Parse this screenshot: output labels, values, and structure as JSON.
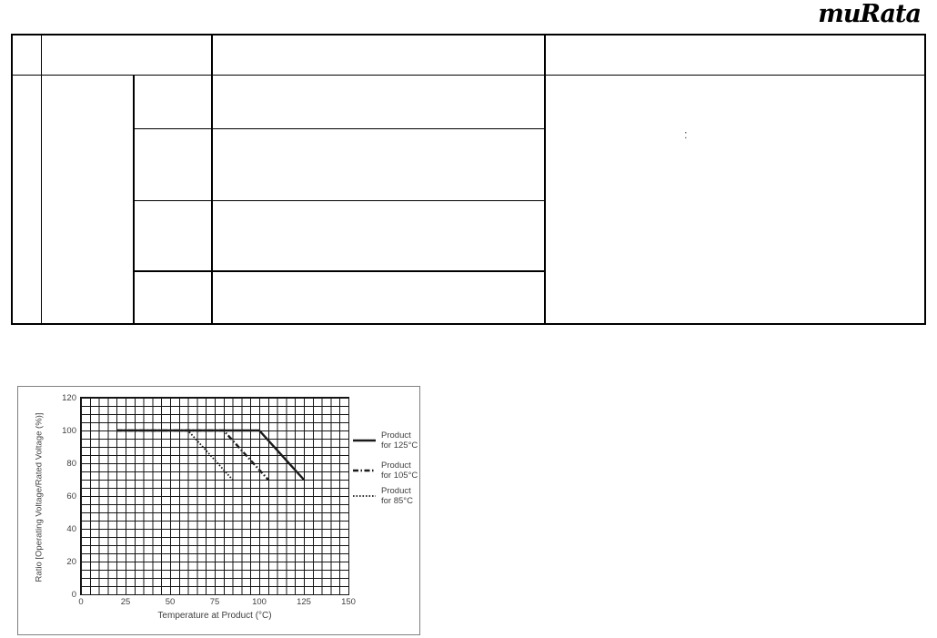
{
  "page": {
    "background": "#ffffff"
  },
  "logo": {
    "text": "muRata"
  },
  "table": {
    "note_mark": ":"
  },
  "chart_data": {
    "type": "line",
    "title": "",
    "xlabel": "Temperature at Product (°C)",
    "ylabel": "Ratio [Operating Voltage/Rated Voltage (%)]",
    "xlim": [
      0,
      150
    ],
    "ylim": [
      0,
      120
    ],
    "x_ticks": [
      0,
      25,
      50,
      75,
      100,
      125,
      150
    ],
    "y_ticks": [
      0,
      20,
      40,
      60,
      80,
      100,
      120
    ],
    "minor_grid_step": 5,
    "grid": "on",
    "legend_position": "right-outside-plot",
    "colors": {
      "line": "#1a1a1a",
      "grid": "#141414",
      "text": "#3f3f3f",
      "frame": "#808080"
    },
    "series": [
      {
        "name": "Product for 125°C",
        "label_line1": "Product",
        "label_line2": "for 125°C",
        "style": "solid",
        "points": [
          [
            20,
            100
          ],
          [
            100,
            100
          ],
          [
            125,
            70
          ]
        ]
      },
      {
        "name": "Product for 105°C",
        "label_line1": "Product",
        "label_line2": "for 105°C",
        "style": "dash-dot",
        "points": [
          [
            20,
            100
          ],
          [
            80,
            100
          ],
          [
            105,
            70
          ]
        ]
      },
      {
        "name": "Product for 85°C",
        "label_line1": "Product",
        "label_line2": "for 85°C",
        "style": "dotted",
        "points": [
          [
            20,
            100
          ],
          [
            60,
            100
          ],
          [
            85,
            70
          ]
        ]
      }
    ]
  }
}
